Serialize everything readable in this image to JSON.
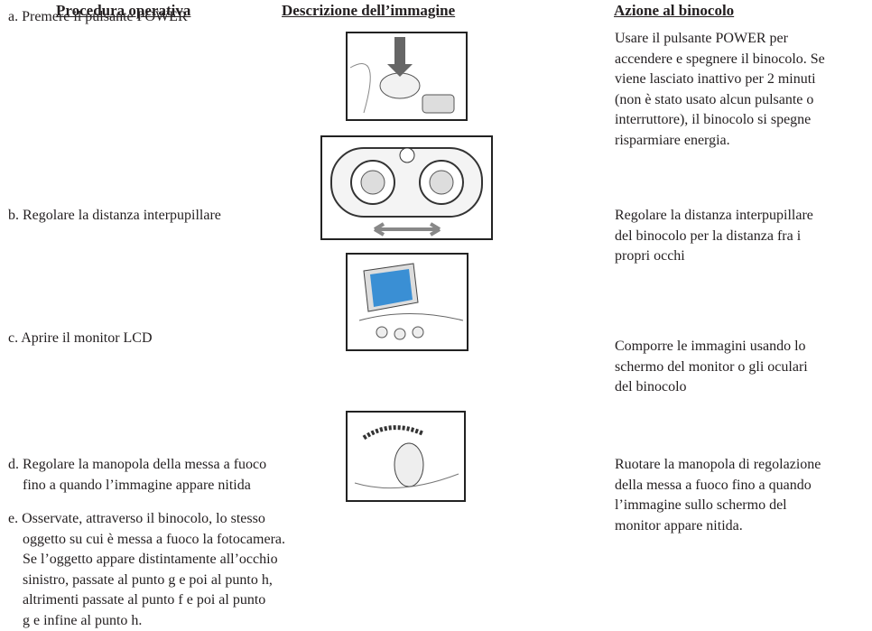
{
  "headers": [
    "Procedura operativa",
    "Descrizione dell’immagine",
    "Azione al binocolo"
  ],
  "rows": [
    {
      "procedure": [
        "a. Premere il pulsante POWER"
      ],
      "action": [
        "Usare il pulsante POWER per",
        "accendere e spegnere il binocolo. Se",
        "viene lasciato inattivo per 2 minuti",
        "(non è stato usato alcun pulsante o",
        "interruttore), il binocolo si spegne",
        "risparmiare energia."
      ]
    },
    {
      "procedure": [
        "b. Regolare la distanza interpupillare"
      ],
      "action": [
        "Regolare la distanza interpupillare",
        "del binocolo per la distanza fra i",
        "propri occhi"
      ]
    },
    {
      "procedure": [
        "c. Aprire il monitor LCD"
      ],
      "action": [
        "Comporre le immagini usando lo",
        "schermo del monitor o gli oculari",
        "del binocolo"
      ]
    },
    {
      "procedure": [
        "d. Regolare la manopola della messa a fuoco",
        "fino a quando l’immagine appare nitida"
      ],
      "action": [
        "Ruotare la manopola di regolazione",
        "della messa a fuoco fino a quando",
        "l’immagine sullo schermo del",
        "monitor appare nitida."
      ]
    },
    {
      "procedure": [
        "e. Osservate, attraverso il binocolo, lo stesso",
        "oggetto su cui è messa a fuoco la fotocamera.",
        "Se l’oggetto appare distintamente all’occhio",
        "sinistro, passate al punto g e poi al punto h,",
        "altrimenti passate al punto f e poi al punto",
        "g e infine al punto h."
      ],
      "action": []
    }
  ]
}
